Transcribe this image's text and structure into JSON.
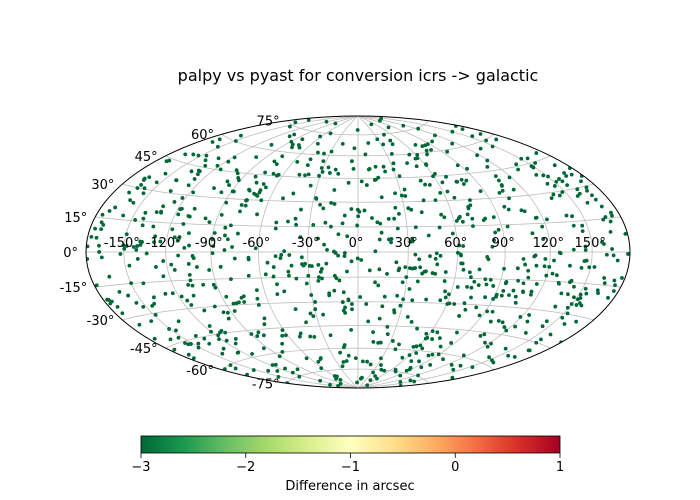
{
  "chart_data": {
    "type": "scatter",
    "title": "palpy vs pyast for conversion icrs -> galactic",
    "projection": "aitoff",
    "grid": true,
    "lon_ticks": [
      "-150°",
      "-120°",
      "-90°",
      "-60°",
      "-30°",
      "0°",
      "30°",
      "60°",
      "90°",
      "120°",
      "150°"
    ],
    "lat_ticks": [
      "75°",
      "60°",
      "45°",
      "30°",
      "15°",
      "0°",
      "-15°",
      "-30°",
      "-45°",
      "-60°",
      "-75°"
    ],
    "point_color": "#006837",
    "point_count": 900,
    "colorbar": {
      "label": "Difference in arcsec",
      "range": [
        -3,
        1
      ],
      "ticks": [
        "−3",
        "−2",
        "−1",
        "0",
        "1"
      ],
      "colormap": [
        "#006837",
        "#1a9850",
        "#66bd63",
        "#a6d96a",
        "#d9ef8b",
        "#ffffbf",
        "#fee08b",
        "#fdae61",
        "#f46d43",
        "#d73027",
        "#a50026"
      ]
    }
  }
}
